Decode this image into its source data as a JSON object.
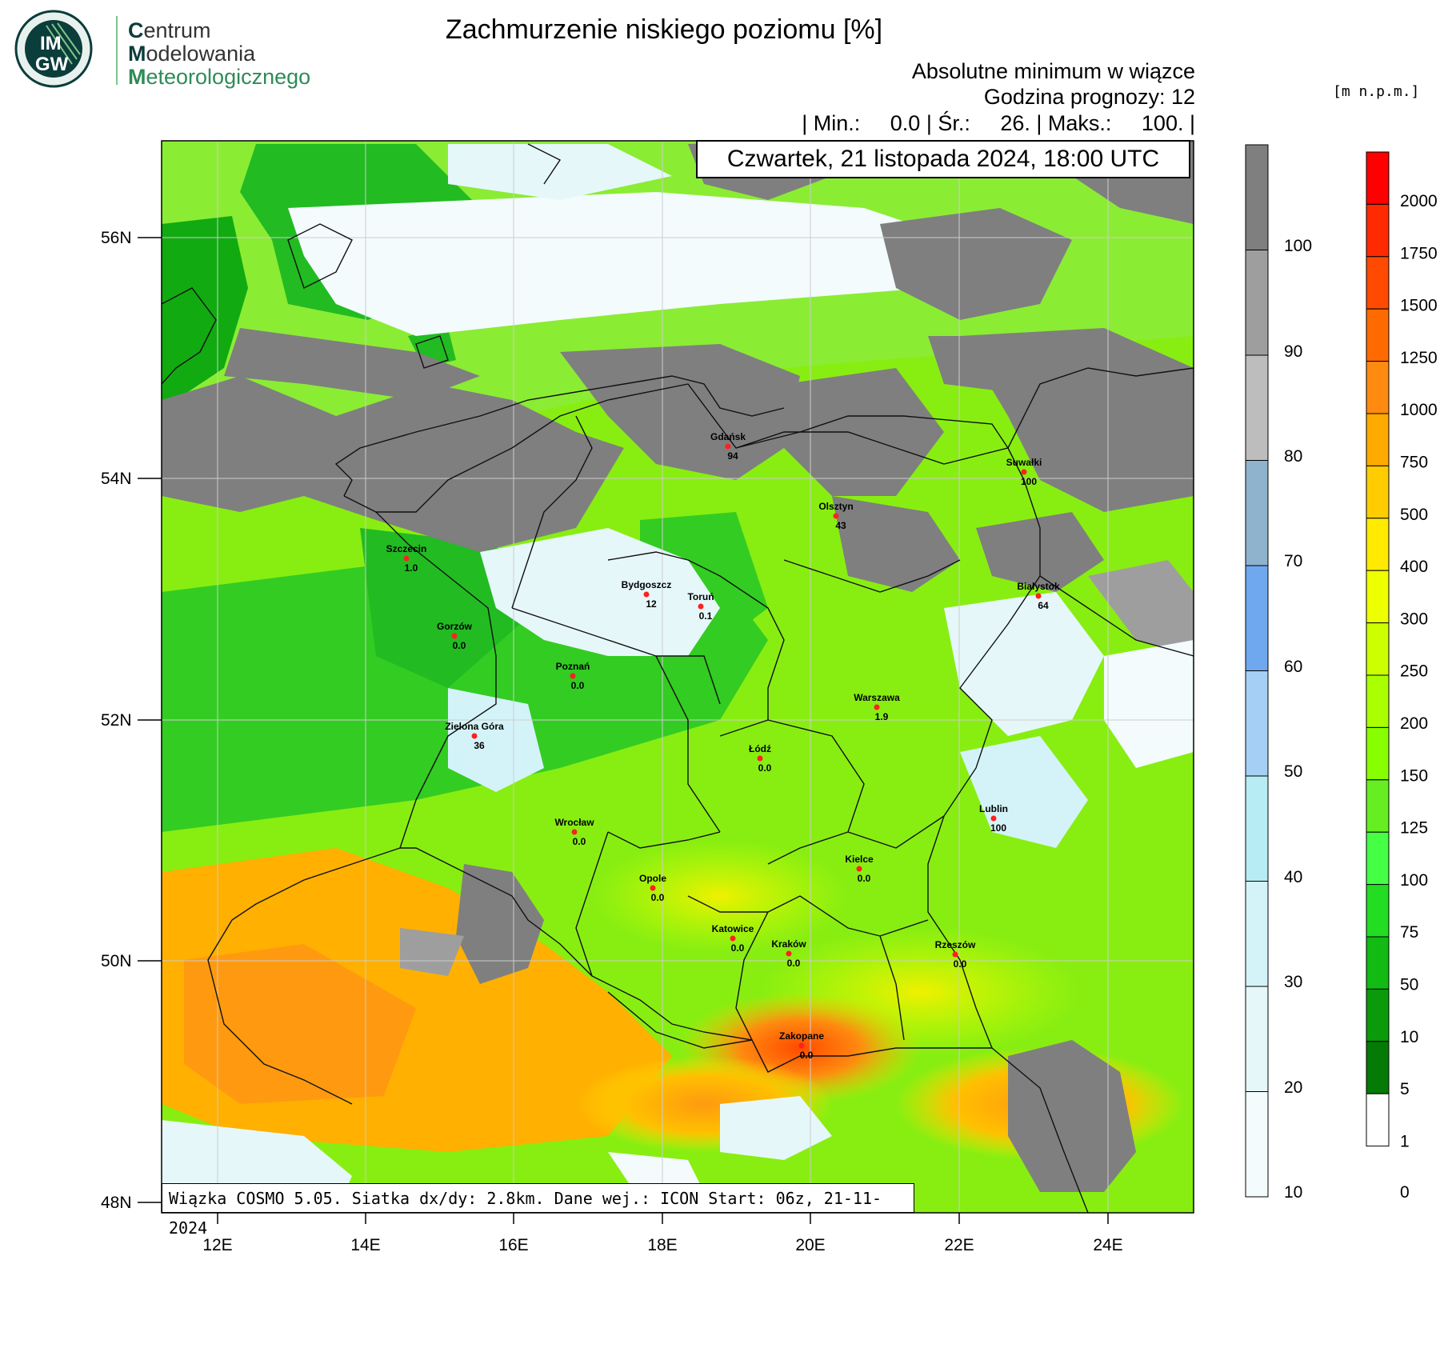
{
  "logo": {
    "line1_cap": "C",
    "line1_rest": "entrum",
    "line2_cap": "M",
    "line2_rest": "odelowania",
    "line3_cap": "M",
    "line3_rest": "eteorologicznego",
    "badge_top": "IM",
    "badge_bottom": "GW"
  },
  "title": "Zachmurzenie niskiego poziomu [%]",
  "subtitle1": "Absolutne minimum w wiązce",
  "subtitle2": "Godzina prognozy: 12",
  "stats": "| Min.:     0.0 | Śr.:     26. | Maks.:     100. |",
  "date": "Czwartek, 21 listopada 2024, 18:00 UTC",
  "footer": "Wiązka COSMO 5.05. Siatka dx/dy: 2.8km. Dane wej.: ICON Start: 06z, 21-11-2024",
  "unit_label": "[m n.p.m.]",
  "lat_labels": [
    "56N",
    "54N",
    "52N",
    "50N",
    "48N"
  ],
  "lon_labels": [
    "12E",
    "14E",
    "16E",
    "18E",
    "20E",
    "22E",
    "24E"
  ],
  "cloud_scale": {
    "labels": [
      "100",
      "90",
      "80",
      "70",
      "60",
      "50",
      "40",
      "30",
      "20",
      "10"
    ],
    "colors": [
      "#7f7f7f",
      "#9e9e9e",
      "#bdbdbd",
      "#8fb3cc",
      "#6fa8ee",
      "#a6cff5",
      "#b8ecf5",
      "#d4f3f8",
      "#e6f7fa",
      "#f3fbfd"
    ]
  },
  "terrain_scale": {
    "labels": [
      "2000",
      "1750",
      "1500",
      "1250",
      "1000",
      "750",
      "500",
      "400",
      "300",
      "250",
      "200",
      "150",
      "125",
      "100",
      "75",
      "50",
      "10",
      "5",
      "1",
      "0"
    ],
    "colors": [
      "#ff0000",
      "#ff2a00",
      "#ff4a00",
      "#ff6a00",
      "#ff8a10",
      "#ffaa00",
      "#ffcc00",
      "#ffea00",
      "#eeff00",
      "#ccff00",
      "#aaff00",
      "#88ff00",
      "#66ee22",
      "#44ff44",
      "#22dd22",
      "#11bb11",
      "#0a9a0a",
      "#067a06",
      "#ffffff"
    ]
  },
  "cities": [
    {
      "name": "Gdańsk",
      "value": "94"
    },
    {
      "name": "Suwałki",
      "value": "100"
    },
    {
      "name": "Olsztyn",
      "value": "43"
    },
    {
      "name": "Szczecin",
      "value": "1.0"
    },
    {
      "name": "Bydgoszcz",
      "value": "12"
    },
    {
      "name": "Toruń",
      "value": "0.1"
    },
    {
      "name": "Białystok",
      "value": "64"
    },
    {
      "name": "Gorzów",
      "value": "0.0"
    },
    {
      "name": "Poznań",
      "value": "0.0"
    },
    {
      "name": "Warszawa",
      "value": "1.9"
    },
    {
      "name": "Zielona Góra",
      "value": "36"
    },
    {
      "name": "Łódź",
      "value": "0.0"
    },
    {
      "name": "Lublin",
      "value": "100"
    },
    {
      "name": "Wrocław",
      "value": "0.0"
    },
    {
      "name": "Kielce",
      "value": "0.0"
    },
    {
      "name": "Opole",
      "value": "0.0"
    },
    {
      "name": "Katowice",
      "value": "0.0"
    },
    {
      "name": "Kraków",
      "value": "0.0"
    },
    {
      "name": "Rzeszów",
      "value": "0.0"
    },
    {
      "name": "Zakopane",
      "value": "0.0"
    }
  ]
}
